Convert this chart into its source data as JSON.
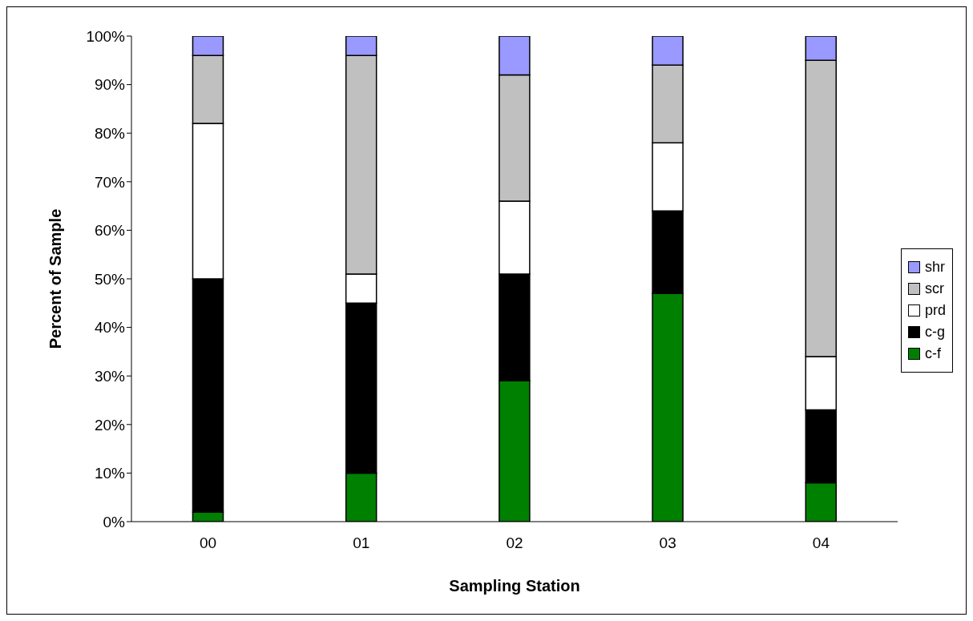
{
  "chart_data": {
    "type": "bar",
    "stacked": true,
    "xlabel": "Sampling Station",
    "ylabel": "Percent of Sample",
    "categories": [
      "00",
      "01",
      "02",
      "03",
      "04"
    ],
    "series": [
      {
        "name": "c-f",
        "color": "#008000",
        "values": [
          2,
          10,
          29,
          47,
          8
        ]
      },
      {
        "name": "c-g",
        "color": "#000000",
        "values": [
          48,
          35,
          22,
          17,
          15
        ]
      },
      {
        "name": "prd",
        "color": "#ffffff",
        "values": [
          32,
          6,
          15,
          14,
          11
        ]
      },
      {
        "name": "scr",
        "color": "#c0c0c0",
        "values": [
          14,
          45,
          26,
          16,
          61
        ]
      },
      {
        "name": "shr",
        "color": "#9999ff",
        "values": [
          4,
          4,
          8,
          6,
          5
        ]
      }
    ],
    "ylim": [
      0,
      100
    ],
    "yticks": [
      {
        "value": 0,
        "label": "0%"
      },
      {
        "value": 10,
        "label": "10%"
      },
      {
        "value": 20,
        "label": "20%"
      },
      {
        "value": 30,
        "label": "30%"
      },
      {
        "value": 40,
        "label": "40%"
      },
      {
        "value": 50,
        "label": "50%"
      },
      {
        "value": 60,
        "label": "60%"
      },
      {
        "value": 70,
        "label": "70%"
      },
      {
        "value": 80,
        "label": "80%"
      },
      {
        "value": 90,
        "label": "90%"
      },
      {
        "value": 100,
        "label": "100%"
      }
    ],
    "grid": false,
    "legend": "right"
  }
}
